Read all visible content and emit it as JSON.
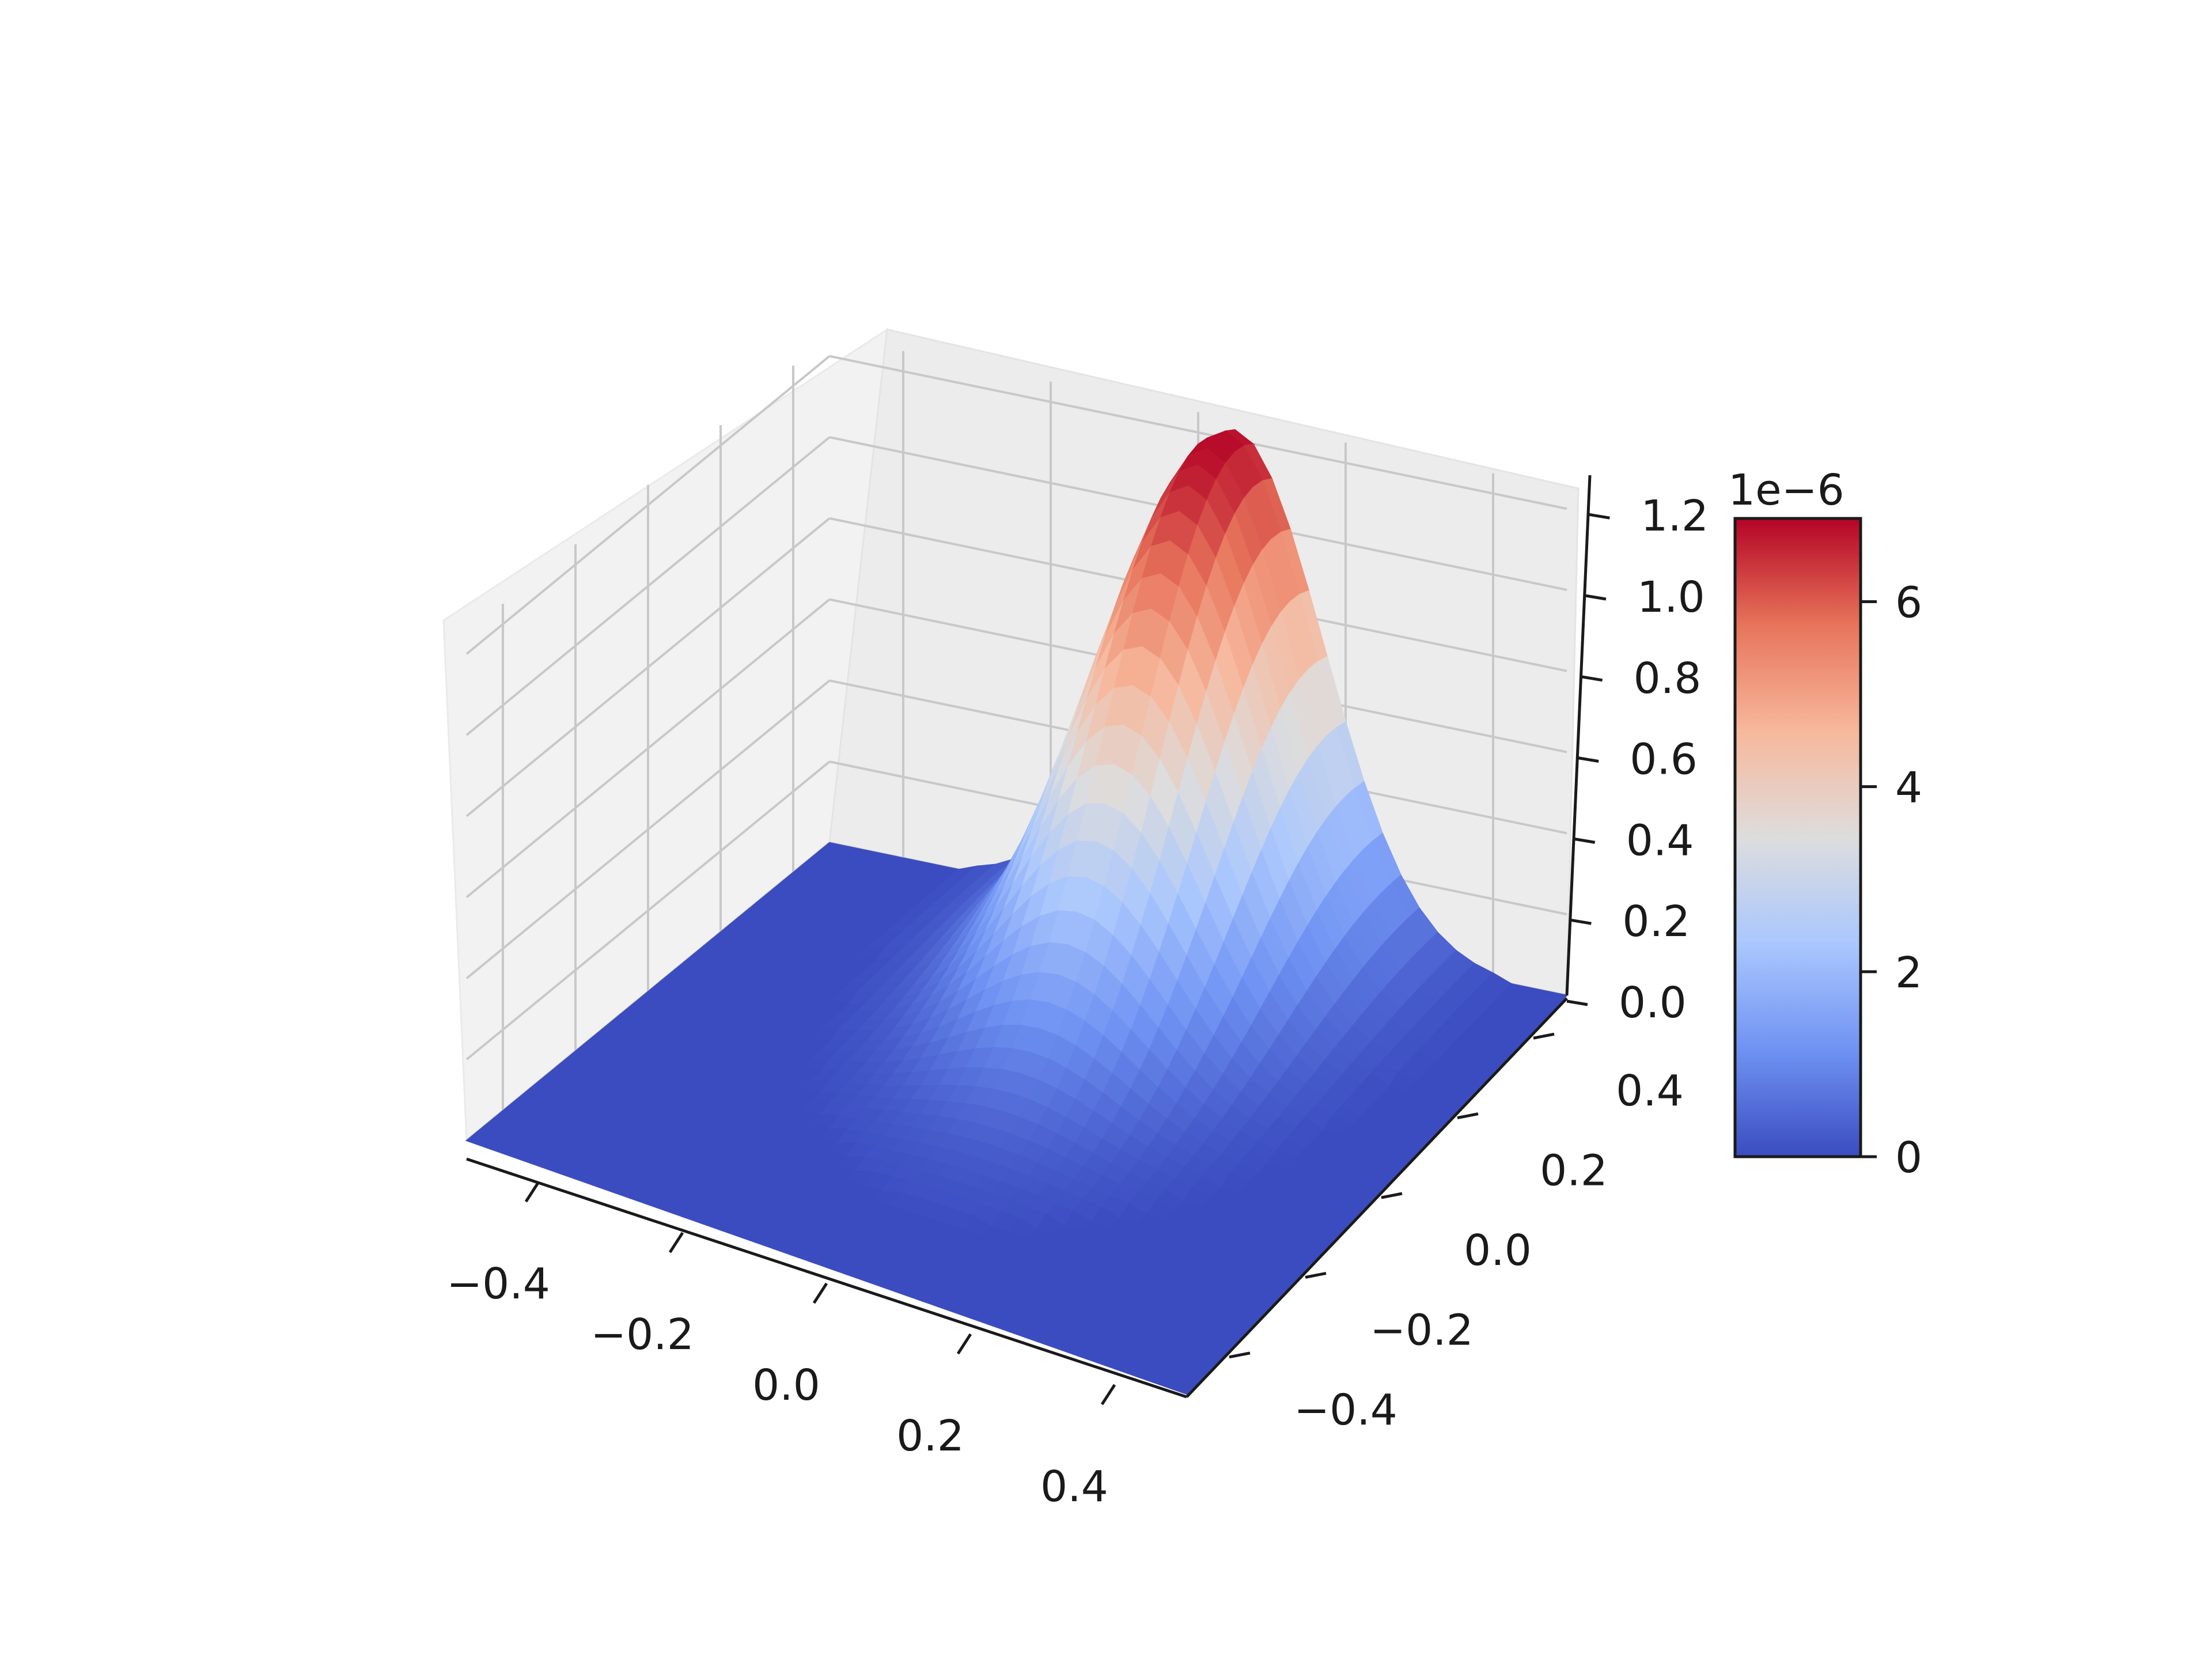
{
  "chart_data": {
    "type": "surface3d",
    "title": "",
    "xlabel": "",
    "ylabel": "",
    "zlabel": "",
    "x_ticks": [
      "−0.4",
      "−0.2",
      "0.0",
      "0.2",
      "0.4"
    ],
    "x_tick_values": [
      -0.4,
      -0.2,
      0.0,
      0.2,
      0.4
    ],
    "y_ticks": [
      "−0.4",
      "−0.2",
      "0.0",
      "0.2",
      "0.4"
    ],
    "y_tick_values": [
      -0.4,
      -0.2,
      0.0,
      0.2,
      0.4
    ],
    "z_ticks": [
      "0.0",
      "0.2",
      "0.4",
      "0.6",
      "0.8",
      "1.0",
      "1.2"
    ],
    "z_tick_values": [
      0.0,
      0.2,
      0.4,
      0.6,
      0.8,
      1.0,
      1.2
    ],
    "xlim": [
      -0.5,
      0.5
    ],
    "ylim": [
      -0.5,
      0.5
    ],
    "zlim": [
      0.0,
      1.25
    ],
    "grid": true,
    "colormap": "coolwarm",
    "colormap_stops": [
      "#3b4cc0",
      "#6f92f3",
      "#aac7fd",
      "#dddddd",
      "#f7b89c",
      "#e7745b",
      "#b40426"
    ],
    "colorbar": {
      "offset_label": "1e−6",
      "ticks": [
        "0",
        "2",
        "4",
        "6"
      ],
      "tick_values": [
        0,
        2,
        4,
        6
      ],
      "range": [
        0,
        6.9
      ]
    },
    "surface": {
      "description_values": "Gaussian-like peak centred near x=0.05, y=0.45; flat zero elsewhere",
      "peak_z": 1.25,
      "peak_x": 0.05,
      "peak_y": 0.45,
      "sigma_x": 0.12,
      "sigma_y": 0.25
    }
  }
}
